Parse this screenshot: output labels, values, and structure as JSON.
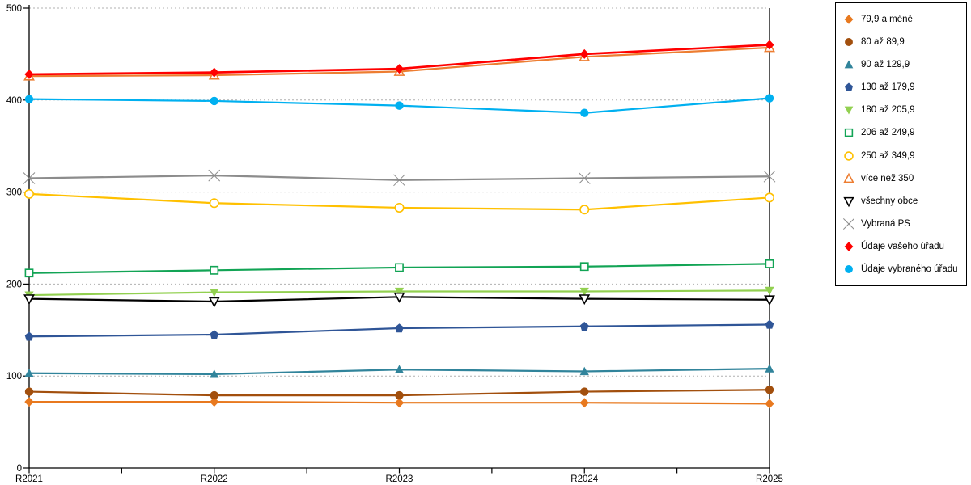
{
  "chart_data": {
    "type": "line",
    "title": "",
    "xlabel": "",
    "ylabel": "",
    "categories": [
      "R2021",
      "R2022",
      "R2023",
      "R2024",
      "R2025"
    ],
    "ylim": [
      0,
      500
    ],
    "yticks": [
      0,
      100,
      200,
      300,
      400,
      500
    ],
    "grid": "horizontal-dashed",
    "gridline_color": "#b0b0b0",
    "axis_color": "#000000",
    "legend_position": "right",
    "series": [
      {
        "name": "79,9 a méně",
        "marker": "diamond",
        "style": "filled",
        "color": "#E8791F",
        "values": [
          72,
          72,
          71,
          71,
          70
        ]
      },
      {
        "name": "80 až 89,9",
        "marker": "circle",
        "style": "filled",
        "color": "#A24F0D",
        "values": [
          83,
          79,
          79,
          83,
          85
        ]
      },
      {
        "name": "90 až 129,9",
        "marker": "triangle-up",
        "style": "filled",
        "color": "#31849B",
        "values": [
          103,
          102,
          107,
          105,
          108
        ]
      },
      {
        "name": "130 až 179,9",
        "marker": "pentagon",
        "style": "filled",
        "color": "#2F5597",
        "values": [
          143,
          145,
          152,
          154,
          156
        ]
      },
      {
        "name": "180 až 205,9",
        "marker": "triangle-down",
        "style": "filled",
        "color": "#92D050",
        "values": [
          188,
          191,
          192,
          192,
          193
        ]
      },
      {
        "name": "206 až 249,9",
        "marker": "square",
        "style": "open",
        "color": "#12A455",
        "values": [
          212,
          215,
          218,
          219,
          222
        ]
      },
      {
        "name": "250 až 349,9",
        "marker": "circle",
        "style": "open",
        "color": "#FFC000",
        "values": [
          298,
          288,
          283,
          281,
          294
        ]
      },
      {
        "name": "více než 350",
        "marker": "triangle-up",
        "style": "open",
        "color": "#ED7D31",
        "values": [
          426,
          427,
          431,
          447,
          457
        ]
      },
      {
        "name": "všechny obce",
        "marker": "triangle-down",
        "style": "open",
        "color": "#000000",
        "values": [
          184,
          181,
          186,
          184,
          183
        ]
      },
      {
        "name": "Vybraná PS",
        "marker": "x",
        "style": "open",
        "color": "#8C8C8C",
        "values": [
          315,
          318,
          313,
          315,
          317
        ]
      },
      {
        "name": "Údaje vašeho úřadu",
        "marker": "diamond",
        "style": "filled",
        "color": "#FF0000",
        "values": [
          428,
          430,
          434,
          450,
          460
        ]
      },
      {
        "name": "Údaje vybraného úřadu",
        "marker": "circle",
        "style": "filled",
        "color": "#00B0F0",
        "values": [
          401,
          399,
          394,
          386,
          402
        ]
      }
    ]
  }
}
